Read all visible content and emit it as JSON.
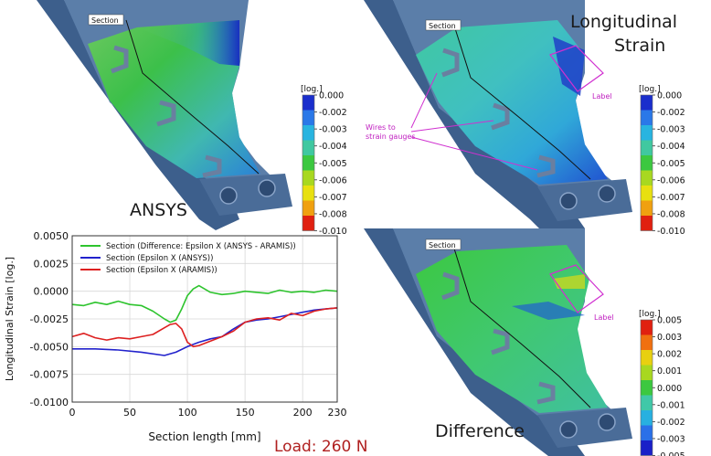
{
  "panels": {
    "ansys": {
      "title": "ANSYS",
      "section_tag": "Section"
    },
    "aramis": {
      "title_line1": "Longitudinal",
      "title_line2": "Strain",
      "section_tag": "Section",
      "wires_line1": "Wires to",
      "wires_line2": "strain gauges",
      "label_tag": "Label"
    },
    "difference": {
      "title": "Difference",
      "section_tag": "Section",
      "label_tag": "Label"
    }
  },
  "colorbars": {
    "strain": {
      "unit": "[log.]",
      "ticks": [
        "0.000",
        "-0.002",
        "-0.003",
        "-0.004",
        "-0.005",
        "-0.006",
        "-0.007",
        "-0.008",
        "-0.010"
      ],
      "colors": [
        "#1a2ecc",
        "#2a78e8",
        "#28b4e0",
        "#40c8a0",
        "#3cc840",
        "#a8d820",
        "#e8e010",
        "#f0a010",
        "#e02010"
      ]
    },
    "difference": {
      "unit": "[log.]",
      "ticks": [
        "0.005",
        "0.003",
        "0.002",
        "0.001",
        "0.000",
        "-0.001",
        "-0.002",
        "-0.003",
        "-0.005"
      ],
      "colors": [
        "#e02010",
        "#f07010",
        "#e8d010",
        "#a8d820",
        "#3cc840",
        "#40c8a8",
        "#28b0e0",
        "#2a70e8",
        "#1a20c8"
      ]
    }
  },
  "load_label": "Load:  260 N",
  "chart_data": {
    "type": "line",
    "xlabel": "Section length [mm]",
    "ylabel": "Longitudinal Strain [log.]",
    "xlim": [
      0,
      230
    ],
    "ylim": [
      -0.01,
      0.005
    ],
    "x_ticks": [
      "0",
      "50",
      "100",
      "150",
      "200",
      "230"
    ],
    "y_ticks": [
      "0.0050",
      "0.0025",
      "0.0000",
      "-0.0025",
      "-0.0050",
      "-0.0075",
      "-0.0100"
    ],
    "grid": true,
    "legend_position": "top",
    "series": [
      {
        "name": "Section (Difference: Epsilon X (ANSYS - ARAMIS))",
        "color": "#2ec42e",
        "x": [
          0,
          10,
          20,
          30,
          40,
          50,
          60,
          70,
          80,
          85,
          90,
          95,
          100,
          105,
          110,
          120,
          130,
          140,
          150,
          160,
          170,
          180,
          190,
          200,
          210,
          220,
          230
        ],
        "y": [
          -0.0012,
          -0.0013,
          -0.001,
          -0.0012,
          -0.0009,
          -0.0012,
          -0.0013,
          -0.0018,
          -0.0025,
          -0.0028,
          -0.0026,
          -0.0016,
          -0.0004,
          0.0002,
          0.0005,
          -0.0001,
          -0.0003,
          -0.0002,
          0.0,
          -0.0001,
          -0.0002,
          0.0001,
          -0.0001,
          0.0,
          -0.0001,
          0.0001,
          0.0
        ]
      },
      {
        "name": "Section (Epsilon X (ANSYS))",
        "color": "#2222cc",
        "x": [
          0,
          20,
          40,
          60,
          80,
          90,
          100,
          110,
          120,
          130,
          140,
          150,
          160,
          170,
          180,
          190,
          200,
          210,
          220,
          230
        ],
        "y": [
          -0.0052,
          -0.0052,
          -0.0053,
          -0.0055,
          -0.0058,
          -0.0055,
          -0.005,
          -0.0046,
          -0.0043,
          -0.0041,
          -0.0034,
          -0.0028,
          -0.0026,
          -0.0025,
          -0.0023,
          -0.0021,
          -0.0019,
          -0.0017,
          -0.0016,
          -0.0015
        ]
      },
      {
        "name": "Section (Epsilon X (ARAMIS))",
        "color": "#dd2020",
        "x": [
          0,
          10,
          20,
          30,
          40,
          50,
          60,
          70,
          80,
          85,
          90,
          95,
          100,
          105,
          110,
          120,
          130,
          140,
          150,
          160,
          170,
          180,
          190,
          200,
          210,
          220,
          230
        ],
        "y": [
          -0.0041,
          -0.0038,
          -0.0042,
          -0.0044,
          -0.0042,
          -0.0043,
          -0.0041,
          -0.0039,
          -0.0033,
          -0.003,
          -0.0029,
          -0.0034,
          -0.0046,
          -0.005,
          -0.0049,
          -0.0045,
          -0.0041,
          -0.0036,
          -0.0028,
          -0.0025,
          -0.0024,
          -0.0026,
          -0.002,
          -0.0022,
          -0.0018,
          -0.0016,
          -0.0015
        ]
      }
    ]
  }
}
